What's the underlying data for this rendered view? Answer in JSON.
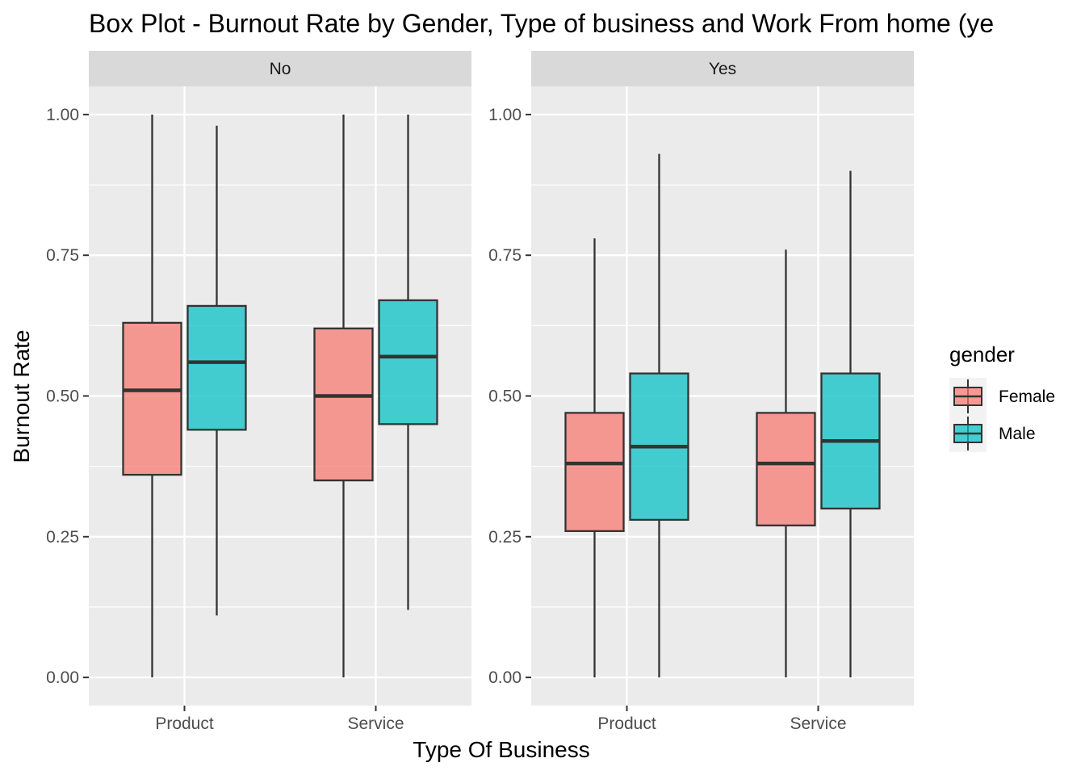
{
  "chart_data": {
    "type": "box",
    "title": "Box Plot - Burnout Rate by Gender, Type of business and Work From home (ye",
    "xlabel": "Type Of Business",
    "ylabel": "Burnout Rate",
    "ylim": [
      -0.05,
      1.05
    ],
    "yticks": [
      "0.00",
      "0.25",
      "0.50",
      "0.75",
      "1.00"
    ],
    "ytick_values": [
      0,
      0.25,
      0.5,
      0.75,
      1.0
    ],
    "categories": [
      "Product",
      "Service"
    ],
    "legend": {
      "title": "gender",
      "position": "right",
      "entries": [
        {
          "name": "Female",
          "color": "#F8766D"
        },
        {
          "name": "Male",
          "color": "#00BFC4"
        }
      ]
    },
    "panels": [
      {
        "strip": "No",
        "groups": [
          {
            "category": "Product",
            "gender": "Female",
            "min": 0.0,
            "q1": 0.36,
            "median": 0.51,
            "q3": 0.63,
            "max": 1.0
          },
          {
            "category": "Product",
            "gender": "Male",
            "min": 0.11,
            "q1": 0.44,
            "median": 0.56,
            "q3": 0.66,
            "max": 0.98
          },
          {
            "category": "Service",
            "gender": "Female",
            "min": 0.0,
            "q1": 0.35,
            "median": 0.5,
            "q3": 0.62,
            "max": 1.0
          },
          {
            "category": "Service",
            "gender": "Male",
            "min": 0.12,
            "q1": 0.45,
            "median": 0.57,
            "q3": 0.67,
            "max": 1.0
          }
        ]
      },
      {
        "strip": "Yes",
        "groups": [
          {
            "category": "Product",
            "gender": "Female",
            "min": 0.0,
            "q1": 0.26,
            "median": 0.38,
            "q3": 0.47,
            "max": 0.78
          },
          {
            "category": "Product",
            "gender": "Male",
            "min": 0.0,
            "q1": 0.28,
            "median": 0.41,
            "q3": 0.54,
            "max": 0.93
          },
          {
            "category": "Service",
            "gender": "Female",
            "min": 0.0,
            "q1": 0.27,
            "median": 0.38,
            "q3": 0.47,
            "max": 0.76
          },
          {
            "category": "Service",
            "gender": "Male",
            "min": 0.0,
            "q1": 0.3,
            "median": 0.42,
            "q3": 0.54,
            "max": 0.9
          }
        ]
      }
    ],
    "colors": {
      "panel_bg": "#EBEBEB",
      "strip_bg": "#D9D9D9",
      "grid": "#FFFFFF",
      "box_line": "#333333"
    }
  }
}
